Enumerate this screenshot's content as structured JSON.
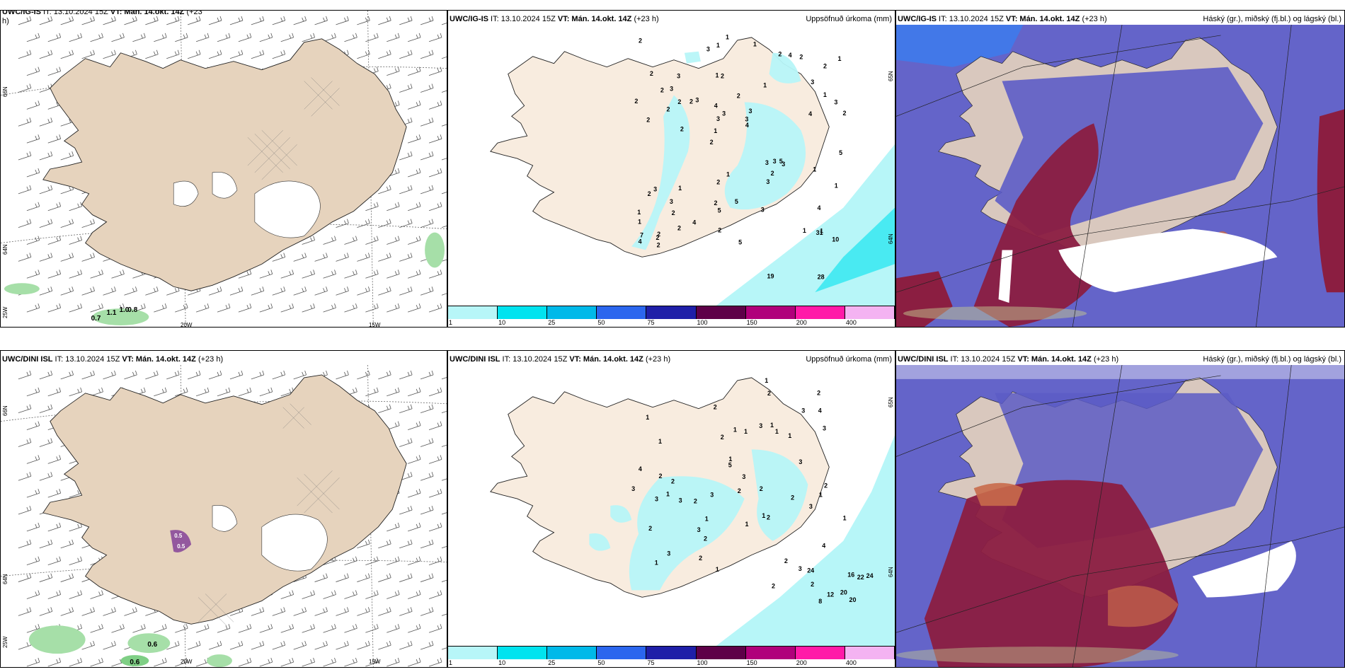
{
  "colors": {
    "land": "#e6d3bd",
    "land_light": "#f8ecdf",
    "sea": "#ffffff",
    "precip_light": "#b7f6f8",
    "cloud_blue": "#5c5cc6",
    "cloud_dark": "#8b1e41",
    "cloud_orange": "#c86a4a",
    "wind_green": "#a6dfa8"
  },
  "legend": {
    "ticks": [
      "1",
      "10",
      "25",
      "50",
      "75",
      "100",
      "150",
      "200",
      "400"
    ],
    "colors": [
      "#b7f6f8",
      "#00e3ef",
      "#00b9e9",
      "#2b66ee",
      "#1f1fa8",
      "#5e0048",
      "#b0007b",
      "#ff1aa8",
      "#f4b3f2"
    ]
  },
  "rows": [
    {
      "wind": {
        "header_title": "UWC/IG-IS",
        "header_rest": " IT: 13.10.2024 15Z ",
        "header_vt": "VT: Mán. 14.okt. 14Z",
        "header_tail": " (+23",
        "header_wrap": "h)",
        "lat_top": "66N",
        "lat_bottom": "64N",
        "lon_left": "25W",
        "lon_mid": "20W",
        "lon_right": "15W",
        "values": [
          "0.7",
          "1.1",
          "1.0",
          "0.8"
        ]
      },
      "precip": {
        "header_title": "UWC/IG-IS",
        "header_rest": " IT: 13.10.2024 15Z ",
        "header_vt": "VT: Mán. 14.okt. 14Z",
        "header_tail": " (+23 h)",
        "right_label": "Uppsöfnuð úrkoma (mm)",
        "lat_top": "65N",
        "lat_bottom": "64N",
        "labels": [
          "1",
          "2",
          "2",
          "2",
          "1",
          "2",
          "1",
          "2",
          "3",
          "3",
          "1",
          "2",
          "2",
          "3",
          "3",
          "2",
          "1",
          "2",
          "3",
          "1",
          "1",
          "2",
          "3",
          "3",
          "2",
          "1",
          "1",
          "4",
          "5",
          "5",
          "2",
          "2",
          "3",
          "2",
          "3",
          "3",
          "7",
          "5",
          "4",
          "2",
          "3",
          "1",
          "2",
          "3",
          "3",
          "2",
          "4",
          "5",
          "2",
          "1",
          "2",
          "2",
          "3",
          "4",
          "2",
          "1",
          "3",
          "3",
          "1",
          "2",
          "4",
          "3",
          "2",
          "1",
          "2",
          "2",
          "5",
          "4",
          "28",
          "31",
          "19",
          "10",
          "1",
          "2",
          "4",
          "1"
        ]
      },
      "cloud": {
        "header_title": "UWC/IG-IS",
        "header_rest": " IT: 13.10.2024 15Z ",
        "header_vt": "VT: Mán. 14.okt. 14Z",
        "header_tail": " (+23 h)",
        "right_label": "Háský (gr.), miðský (fj.bl.) og lágský (bl.)"
      }
    },
    {
      "wind": {
        "header_title": "UWC/DINI ISL",
        "header_rest": " IT: 13.10.2024 15Z ",
        "header_vt": "VT: Mán. 14.okt. 14Z",
        "header_tail": " (+23 h)",
        "header_wrap": "",
        "lat_top": "66N",
        "lat_bottom": "64N",
        "lon_left": "25W",
        "lon_mid": "20W",
        "lon_right": "15W",
        "values": [
          "0.6",
          "0.6",
          "0.5",
          "0.5"
        ]
      },
      "precip": {
        "header_title": "UWC/DINI ISL",
        "header_rest": " IT: 13.10.2024 15Z ",
        "header_vt": "VT: Mán. 14.okt. 14Z",
        "header_tail": " (+23 h)",
        "right_label": "Uppsöfnuð úrkoma (mm)",
        "lat_top": "65N",
        "lat_bottom": "64N",
        "labels": [
          "2",
          "1",
          "1",
          "1",
          "4",
          "1",
          "3",
          "2",
          "1",
          "1",
          "1",
          "3",
          "2",
          "2",
          "2",
          "2",
          "2",
          "3",
          "4",
          "1",
          "2",
          "1",
          "3",
          "1",
          "2",
          "2",
          "3",
          "2",
          "5",
          "4",
          "2",
          "3",
          "3",
          "1",
          "2",
          "3",
          "1",
          "2",
          "3",
          "2",
          "1",
          "1",
          "2",
          "1",
          "3",
          "2",
          "3",
          "2",
          "3",
          "8",
          "20",
          "24",
          "20",
          "22",
          "24",
          "3",
          "1",
          "1",
          "12",
          "16"
        ]
      },
      "cloud": {
        "header_title": "UWC/DINI ISL",
        "header_rest": " IT: 13.10.2024 15Z ",
        "header_vt": "VT: Mán. 14.okt. 14Z",
        "header_tail": " (+23 h)",
        "right_label": "Háský (gr.), miðský (fj.bl.) og lágský (bl.)"
      }
    }
  ]
}
